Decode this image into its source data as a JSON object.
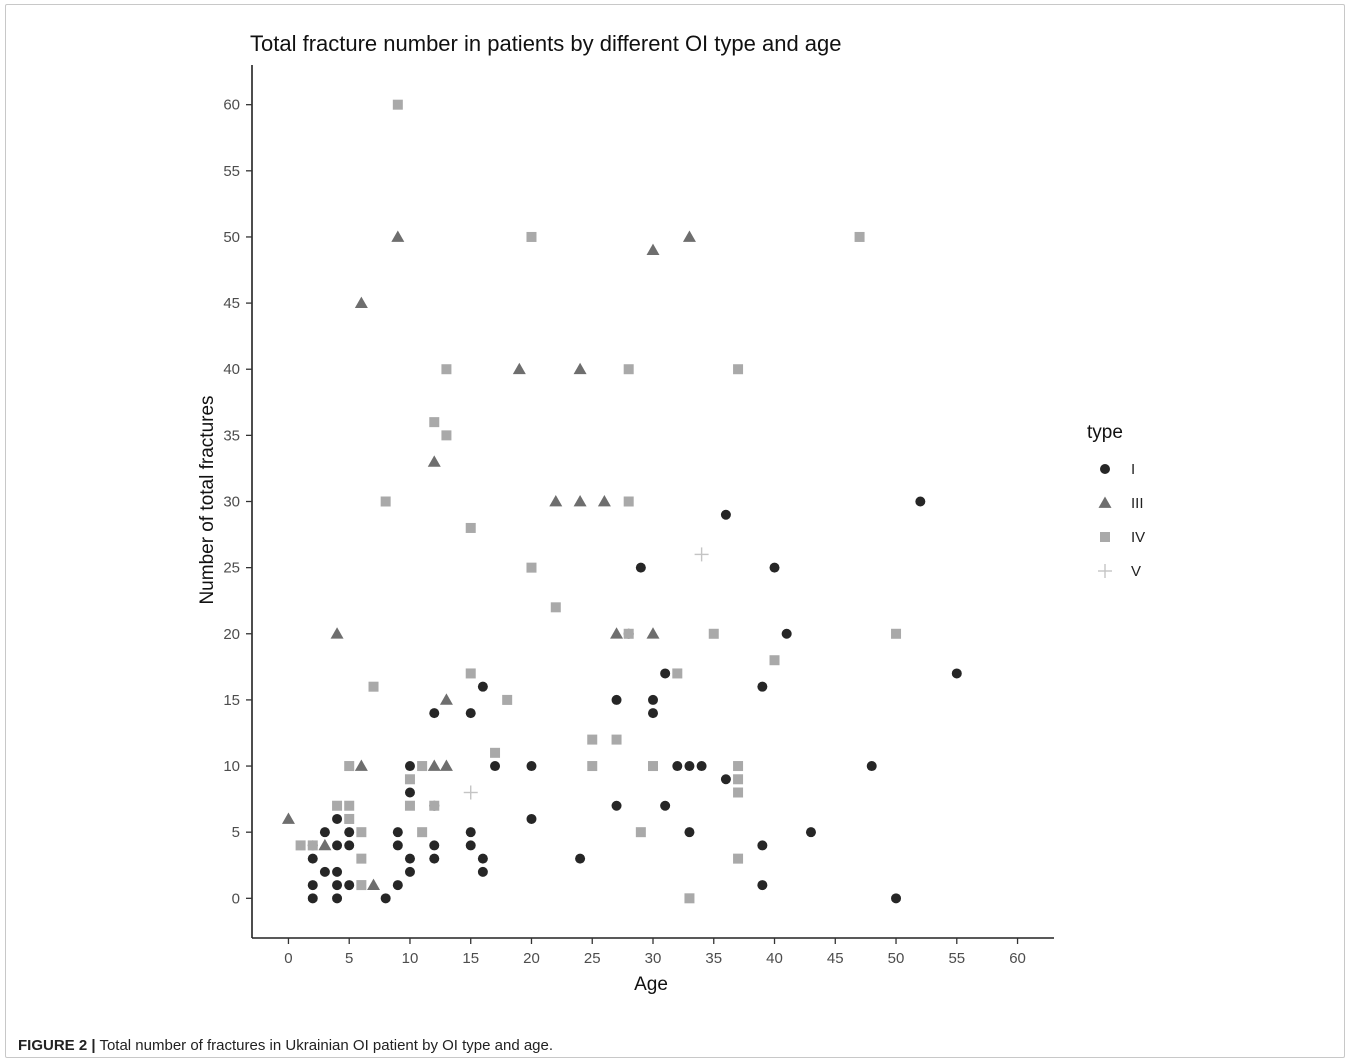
{
  "caption": {
    "label": "FIGURE 2 |",
    "text": "Total number of fractures in Ukrainian OI patient by OI type and age."
  },
  "chart_data": {
    "type": "scatter",
    "title": "Total fracture number in patients by different OI type and age",
    "xlabel": "Age",
    "ylabel": "Number of total fractures",
    "xlim": [
      -3,
      63
    ],
    "ylim": [
      -3,
      63
    ],
    "xticks": [
      0,
      5,
      10,
      15,
      20,
      25,
      30,
      35,
      40,
      45,
      50,
      55,
      60
    ],
    "yticks": [
      0,
      5,
      10,
      15,
      20,
      25,
      30,
      35,
      40,
      45,
      50,
      55,
      60
    ],
    "grid": false,
    "legend": {
      "title": "type",
      "placement": "right"
    },
    "series": [
      {
        "name": "I",
        "marker": "circle",
        "color": "#262626",
        "points": [
          [
            2,
            0
          ],
          [
            2,
            1
          ],
          [
            2,
            3
          ],
          [
            2,
            4
          ],
          [
            3,
            2
          ],
          [
            3,
            5
          ],
          [
            4,
            0
          ],
          [
            4,
            1
          ],
          [
            4,
            2
          ],
          [
            4,
            4
          ],
          [
            4,
            6
          ],
          [
            5,
            1
          ],
          [
            5,
            5
          ],
          [
            5,
            4
          ],
          [
            8,
            0
          ],
          [
            9,
            1
          ],
          [
            9,
            4
          ],
          [
            9,
            5
          ],
          [
            10,
            2
          ],
          [
            10,
            3
          ],
          [
            10,
            8
          ],
          [
            10,
            10
          ],
          [
            12,
            3
          ],
          [
            12,
            4
          ],
          [
            12,
            7
          ],
          [
            12,
            14
          ],
          [
            15,
            4
          ],
          [
            15,
            5
          ],
          [
            15,
            14
          ],
          [
            16,
            2
          ],
          [
            16,
            3
          ],
          [
            16,
            16
          ],
          [
            17,
            10
          ],
          [
            20,
            6
          ],
          [
            20,
            10
          ],
          [
            24,
            3
          ],
          [
            27,
            7
          ],
          [
            27,
            15
          ],
          [
            28,
            20
          ],
          [
            29,
            25
          ],
          [
            30,
            14
          ],
          [
            30,
            15
          ],
          [
            31,
            7
          ],
          [
            31,
            17
          ],
          [
            32,
            10
          ],
          [
            33,
            5
          ],
          [
            33,
            10
          ],
          [
            34,
            10
          ],
          [
            36,
            9
          ],
          [
            36,
            29
          ],
          [
            39,
            1
          ],
          [
            39,
            4
          ],
          [
            39,
            16
          ],
          [
            40,
            25
          ],
          [
            41,
            20
          ],
          [
            43,
            5
          ],
          [
            48,
            10
          ],
          [
            50,
            0
          ],
          [
            52,
            30
          ],
          [
            55,
            17
          ]
        ]
      },
      {
        "name": "III",
        "marker": "triangle",
        "color": "#6e6e6e",
        "points": [
          [
            0,
            6
          ],
          [
            3,
            4
          ],
          [
            4,
            20
          ],
          [
            6,
            10
          ],
          [
            6,
            45
          ],
          [
            7,
            1
          ],
          [
            9,
            50
          ],
          [
            12,
            10
          ],
          [
            12,
            33
          ],
          [
            13,
            10
          ],
          [
            13,
            15
          ],
          [
            19,
            40
          ],
          [
            22,
            30
          ],
          [
            24,
            30
          ],
          [
            24,
            40
          ],
          [
            26,
            30
          ],
          [
            27,
            20
          ],
          [
            30,
            20
          ],
          [
            30,
            49
          ],
          [
            33,
            50
          ]
        ]
      },
      {
        "name": "IV",
        "marker": "square",
        "color": "#a9a9a9",
        "points": [
          [
            1,
            4
          ],
          [
            2,
            4
          ],
          [
            4,
            7
          ],
          [
            5,
            6
          ],
          [
            5,
            7
          ],
          [
            5,
            10
          ],
          [
            6,
            1
          ],
          [
            6,
            3
          ],
          [
            6,
            5
          ],
          [
            7,
            16
          ],
          [
            8,
            30
          ],
          [
            9,
            60
          ],
          [
            10,
            7
          ],
          [
            10,
            9
          ],
          [
            11,
            5
          ],
          [
            11,
            10
          ],
          [
            12,
            7
          ],
          [
            12,
            36
          ],
          [
            13,
            35
          ],
          [
            13,
            40
          ],
          [
            15,
            17
          ],
          [
            15,
            28
          ],
          [
            17,
            11
          ],
          [
            18,
            15
          ],
          [
            20,
            25
          ],
          [
            20,
            50
          ],
          [
            22,
            22
          ],
          [
            25,
            10
          ],
          [
            25,
            12
          ],
          [
            27,
            12
          ],
          [
            28,
            20
          ],
          [
            28,
            30
          ],
          [
            28,
            40
          ],
          [
            29,
            5
          ],
          [
            30,
            10
          ],
          [
            32,
            17
          ],
          [
            33,
            0
          ],
          [
            35,
            20
          ],
          [
            37,
            3
          ],
          [
            37,
            8
          ],
          [
            37,
            9
          ],
          [
            37,
            10
          ],
          [
            37,
            40
          ],
          [
            40,
            18
          ],
          [
            47,
            50
          ],
          [
            50,
            20
          ]
        ]
      },
      {
        "name": "V",
        "marker": "plus",
        "color": "#c4c4c4",
        "points": [
          [
            15,
            8
          ],
          [
            34,
            26
          ]
        ]
      }
    ]
  }
}
